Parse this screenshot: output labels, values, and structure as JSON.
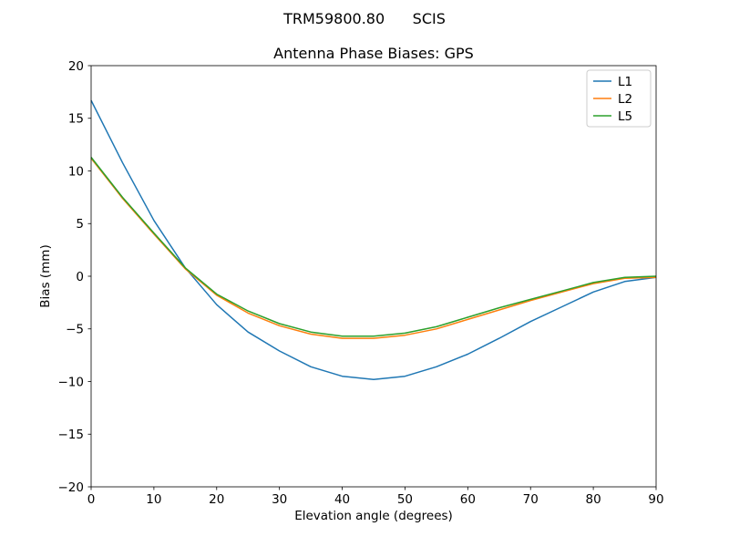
{
  "suptitle": "TRM59800.80      SCIS",
  "chart_data": {
    "type": "line",
    "title": "Antenna Phase Biases: GPS",
    "xlabel": "Elevation angle (degrees)",
    "ylabel": "Bias (mm)",
    "xlim": [
      0,
      90
    ],
    "ylim": [
      -20,
      20
    ],
    "xticks": [
      0,
      10,
      20,
      30,
      40,
      50,
      60,
      70,
      80,
      90
    ],
    "yticks": [
      -20,
      -15,
      -10,
      -5,
      0,
      5,
      10,
      15,
      20
    ],
    "grid": false,
    "legend_position": "upper right",
    "x": [
      0,
      5,
      10,
      15,
      20,
      25,
      30,
      35,
      40,
      45,
      50,
      55,
      60,
      65,
      70,
      75,
      80,
      85,
      90
    ],
    "series": [
      {
        "name": "L1",
        "color": "#1f77b4",
        "values": [
          16.7,
          10.8,
          5.3,
          0.8,
          -2.7,
          -5.3,
          -7.1,
          -8.6,
          -9.5,
          -9.8,
          -9.5,
          -8.6,
          -7.4,
          -5.9,
          -4.3,
          -2.9,
          -1.5,
          -0.5,
          -0.1
        ]
      },
      {
        "name": "L2",
        "color": "#ff7f0e",
        "values": [
          11.2,
          7.4,
          4.0,
          0.7,
          -1.8,
          -3.5,
          -4.7,
          -5.5,
          -5.9,
          -5.9,
          -5.6,
          -5.0,
          -4.1,
          -3.2,
          -2.3,
          -1.5,
          -0.7,
          -0.2,
          -0.1
        ]
      },
      {
        "name": "L5",
        "color": "#2ca02c",
        "values": [
          11.3,
          7.5,
          4.1,
          0.8,
          -1.7,
          -3.3,
          -4.5,
          -5.3,
          -5.7,
          -5.7,
          -5.4,
          -4.8,
          -3.9,
          -3.0,
          -2.2,
          -1.4,
          -0.6,
          -0.1,
          0.0
        ]
      }
    ]
  }
}
